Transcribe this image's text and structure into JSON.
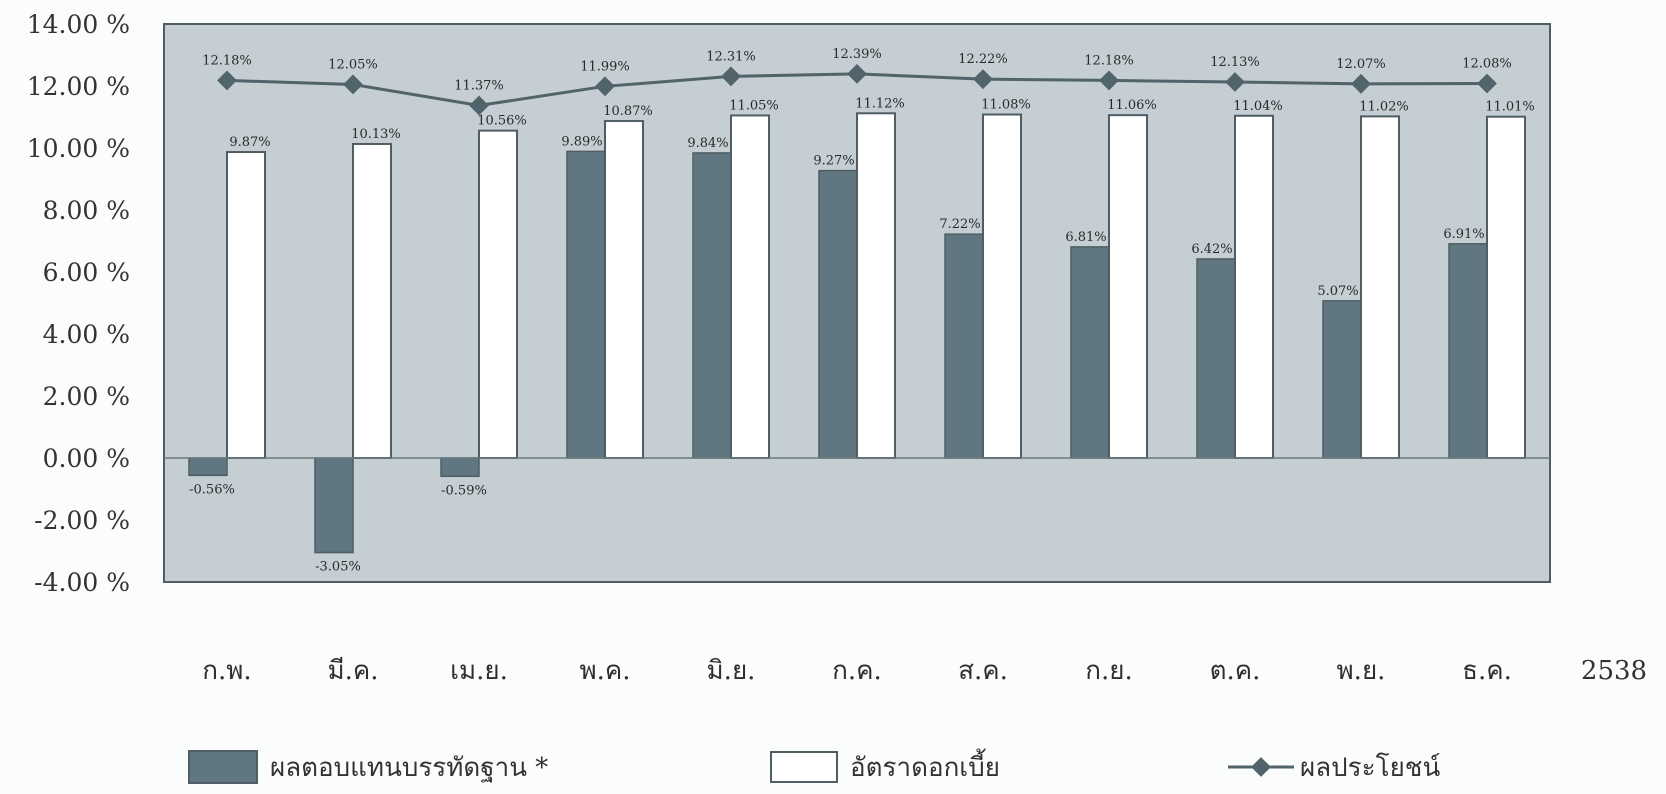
{
  "chart_data": {
    "type": "bar",
    "categories": [
      "ก.พ.",
      "มี.ค.",
      "เม.ย.",
      "พ.ค.",
      "มิ.ย.",
      "ก.ค.",
      "ส.ค.",
      "ก.ย.",
      "ต.ค.",
      "พ.ย.",
      "ธ.ค."
    ],
    "year_label": "2538",
    "ylim": [
      -4,
      14
    ],
    "yticks": [
      -4,
      -2,
      0,
      2,
      4,
      6,
      8,
      10,
      12,
      14
    ],
    "ytick_labels": [
      "-4.00 %",
      "-2.00 %",
      "0.00 %",
      "2.00 %",
      "4.00 %",
      "6.00 %",
      "8.00 %",
      "10.00 %",
      "12.00 %",
      "14.00 %"
    ],
    "grid": false,
    "legend_position": "bottom",
    "plot_background": "#c5ced2",
    "series": [
      {
        "name": "ผลตอบแทนบรรทัดฐาน *",
        "type": "bar",
        "color": "#607680",
        "values": [
          -0.56,
          -3.05,
          -0.59,
          9.89,
          9.84,
          9.27,
          7.22,
          6.81,
          6.42,
          5.07,
          6.91
        ],
        "labels": [
          "-0.56%",
          "-3.05%",
          "-0.59%",
          "9.89%",
          "9.84%",
          "9.27%",
          "7.22%",
          "6.81%",
          "6.42%",
          "5.07%",
          "6.91%"
        ]
      },
      {
        "name": "อัตราดอกเบี้ย",
        "type": "bar",
        "color": "#ffffff",
        "values": [
          9.87,
          10.13,
          10.56,
          10.87,
          11.05,
          11.12,
          11.08,
          11.06,
          11.04,
          11.02,
          11.01
        ],
        "labels": [
          "9.87%",
          "10.13%",
          "10.56%",
          "10.87%",
          "11.05%",
          "11.12%",
          "11.08%",
          "11.06%",
          "11.04%",
          "11.02%",
          "11.01%"
        ]
      },
      {
        "name": "ผลประโยชน์",
        "type": "line",
        "color": "#51636b",
        "values": [
          12.18,
          12.05,
          11.37,
          11.99,
          12.31,
          12.39,
          12.22,
          12.18,
          12.13,
          12.07,
          12.08
        ],
        "labels": [
          "12.18%",
          "12.05%",
          "11.37%",
          "11.99%",
          "12.31%",
          "12.39%",
          "12.22%",
          "12.18%",
          "12.13%",
          "12.07%",
          "12.08%"
        ]
      }
    ]
  }
}
